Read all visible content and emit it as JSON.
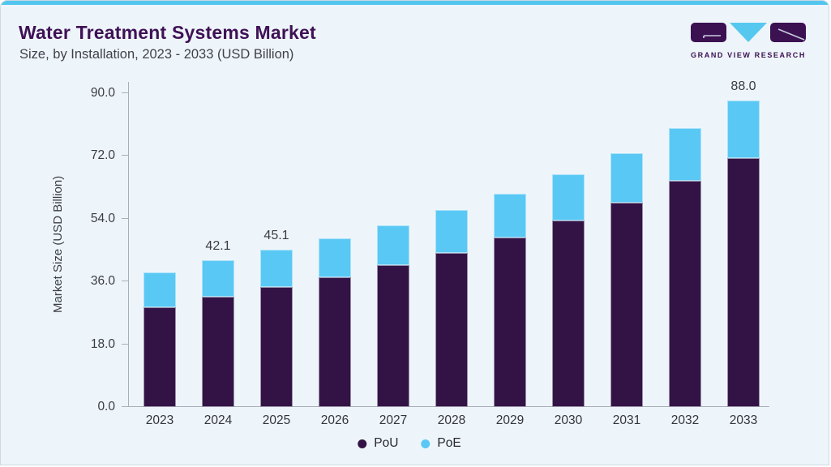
{
  "header": {
    "title": "Water Treatment Systems Market",
    "subtitle": "Size, by Installation, 2023 - 2033 (USD Billion)"
  },
  "logo": {
    "name": "Grand View Research",
    "text": "GRAND VIEW RESEARCH"
  },
  "chart_data": {
    "type": "bar",
    "stacked": true,
    "title": "Water Treatment Systems Market Size, by Installation, 2023 - 2033 (USD Billion)",
    "categories": [
      "2023",
      "2024",
      "2025",
      "2026",
      "2027",
      "2028",
      "2029",
      "2030",
      "2031",
      "2032",
      "2033"
    ],
    "series": [
      {
        "name": "PoU",
        "color": "#331345",
        "values": [
          28.7,
          31.6,
          34.4,
          37.3,
          40.8,
          44.3,
          48.6,
          53.4,
          58.7,
          64.8,
          71.5
        ]
      },
      {
        "name": "PoE",
        "color": "#5ac8f4",
        "values": [
          9.8,
          10.5,
          10.7,
          11.0,
          11.4,
          12.3,
          12.6,
          13.4,
          14.1,
          15.3,
          16.5
        ]
      }
    ],
    "totals": [
      38.5,
      42.1,
      45.1,
      48.3,
      52.2,
      56.6,
      61.2,
      66.8,
      72.8,
      80.1,
      88.0
    ],
    "bar_labels": [
      "",
      "42.1",
      "45.1",
      "",
      "",
      "",
      "",
      "",
      "",
      "",
      "88.0"
    ],
    "xlabel": "",
    "ylabel": "Market Size (USD Billion)",
    "yticks": [
      0,
      18,
      36,
      54,
      72,
      90
    ],
    "ytick_labels": [
      "0.0",
      "18.0",
      "36.0",
      "54.0",
      "72.0",
      "90.0"
    ],
    "ylim": [
      0,
      93.3
    ],
    "grid": false,
    "legend_position": "bottom"
  },
  "colors": {
    "accent_blue": "#52c6ef",
    "bar_pou": "#331345",
    "bar_poe": "#5ac8f4",
    "title_purple": "#3f1156",
    "background": "#eef5fa"
  }
}
